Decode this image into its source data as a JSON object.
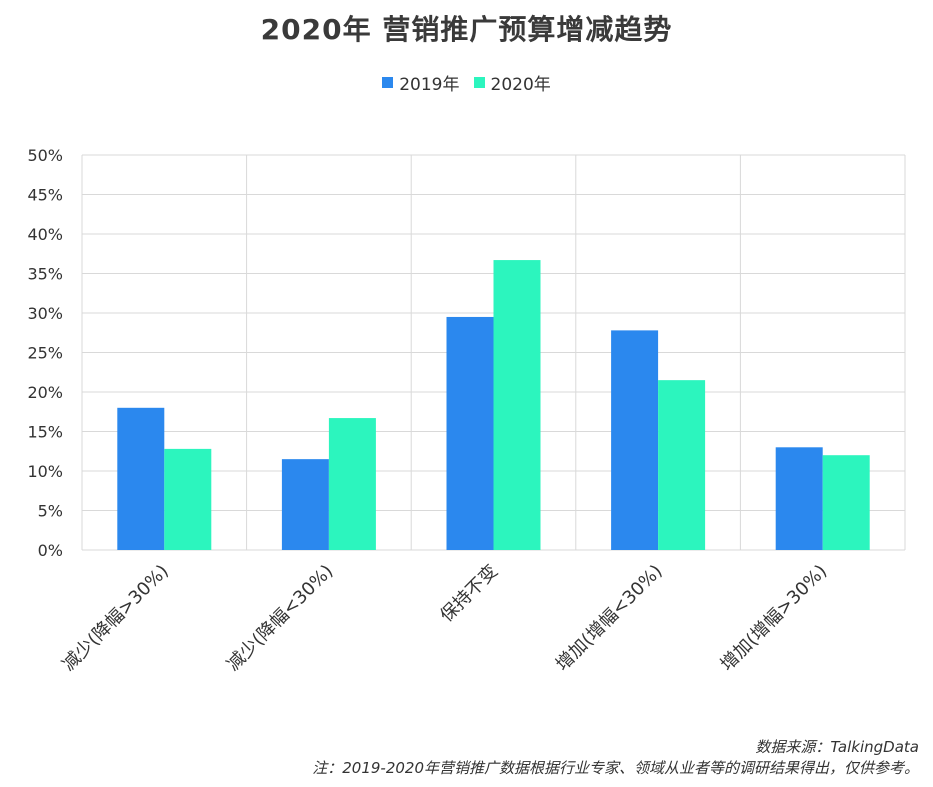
{
  "chart_data": {
    "type": "bar",
    "title": "2020年  营销推广预算增减趋势",
    "categories": [
      "减少(降幅>30%)",
      "减少(降幅<30%)",
      "保持不变",
      "增加(增幅<30%)",
      "增加(增幅>30%)"
    ],
    "series": [
      {
        "name": "2019年",
        "color": "#2b88ee",
        "values": [
          18,
          11.5,
          29.5,
          27.8,
          13
        ]
      },
      {
        "name": "2020年",
        "color": "#2cf5be",
        "values": [
          12.8,
          16.7,
          36.7,
          21.5,
          12
        ]
      }
    ],
    "ylim": [
      0,
      50
    ],
    "yticks": [
      "0%",
      "5%",
      "10%",
      "15%",
      "20%",
      "25%",
      "30%",
      "35%",
      "40%",
      "45%",
      "50%"
    ],
    "legend_position": "top-center",
    "grid": true
  },
  "footer": {
    "source": "数据来源：TalkingData",
    "note": "注：2019-2020年营销推广数据根据行业专家、领域从业者等的调研结果得出，仅供参考。"
  }
}
